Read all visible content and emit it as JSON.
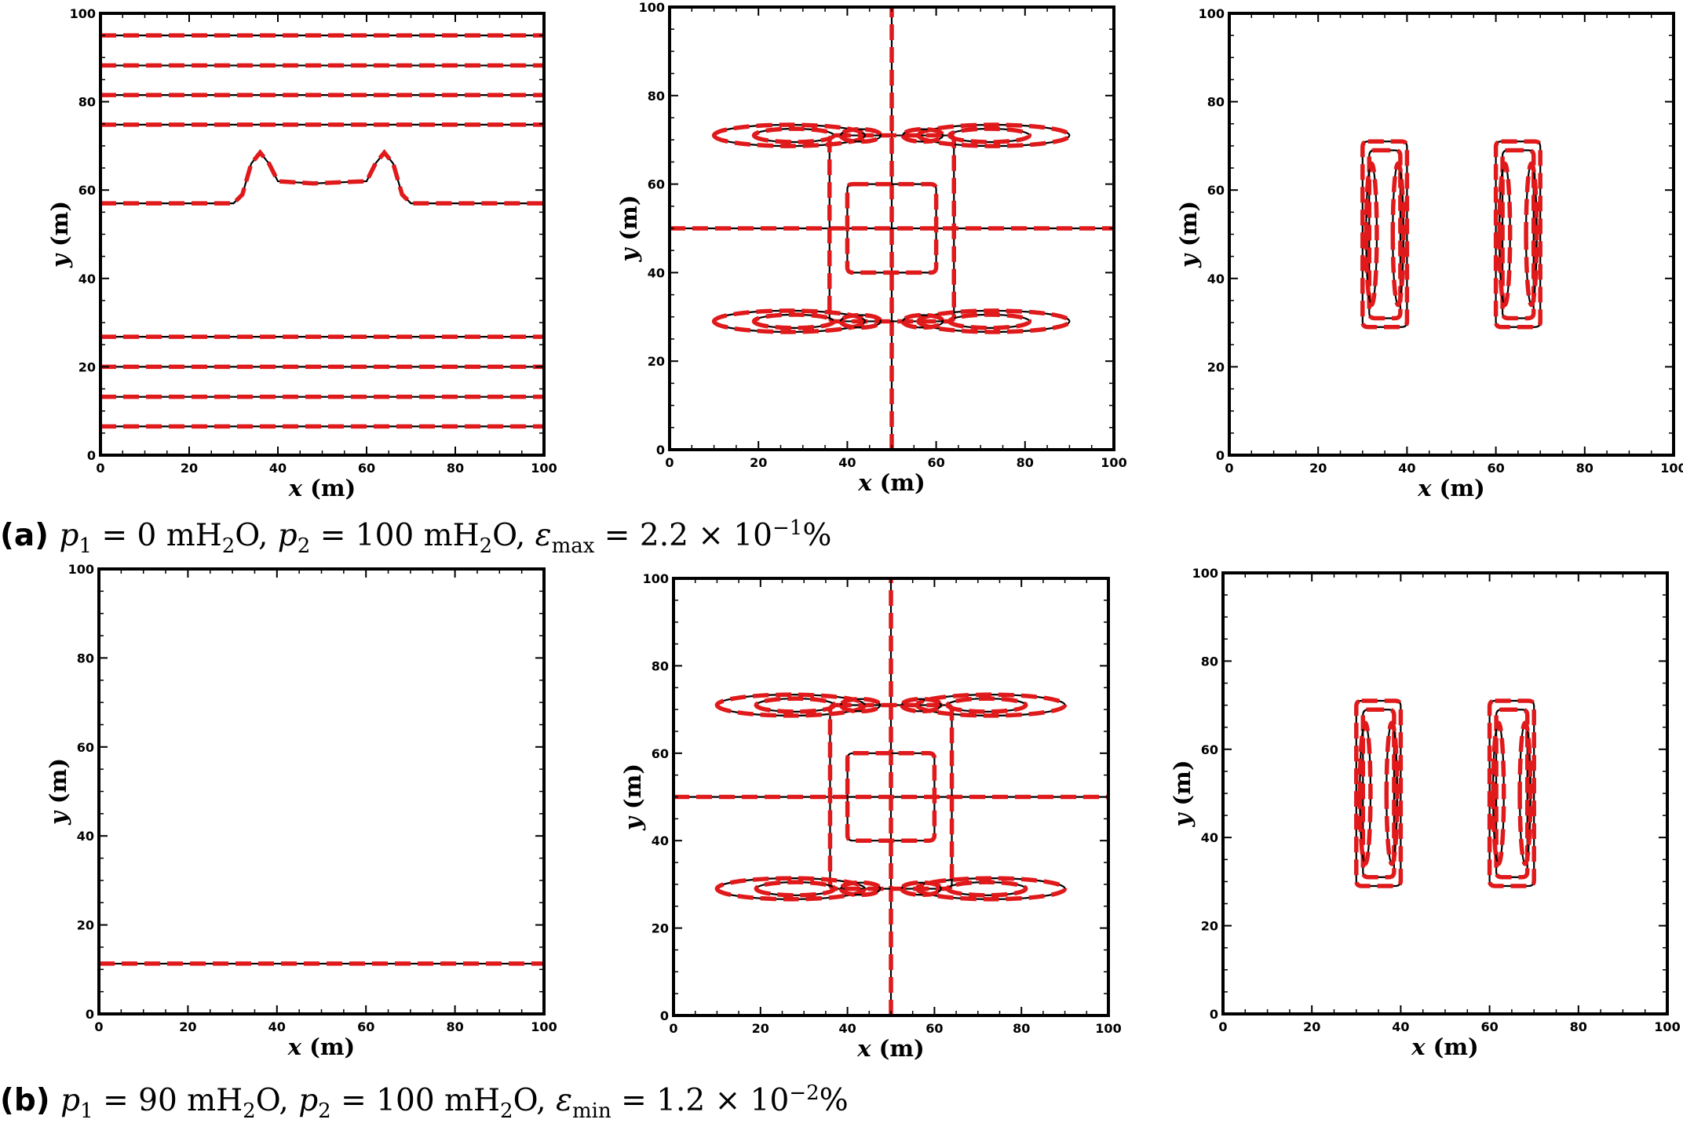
{
  "figure": {
    "caption_a": {
      "label": "(a)",
      "parts": [
        {
          "t": "p",
          "i": true
        },
        {
          "t": "1",
          "sub": true
        },
        {
          "t": " = 0 mH"
        },
        {
          "t": "2",
          "sub": true
        },
        {
          "t": "O, "
        },
        {
          "t": "p",
          "i": true
        },
        {
          "t": "2",
          "sub": true
        },
        {
          "t": " = 100 mH"
        },
        {
          "t": "2",
          "sub": true
        },
        {
          "t": "O, "
        },
        {
          "t": "ε",
          "i": true
        },
        {
          "t": "max",
          "sub": true
        },
        {
          "t": " = 2.2 × 10"
        },
        {
          "t": "−1",
          "sup": true
        },
        {
          "t": "%"
        }
      ]
    },
    "caption_b": {
      "label": "(b)",
      "parts": [
        {
          "t": "p",
          "i": true
        },
        {
          "t": "1",
          "sub": true
        },
        {
          "t": " = 90 mH"
        },
        {
          "t": "2",
          "sub": true
        },
        {
          "t": "O, "
        },
        {
          "t": "p",
          "i": true
        },
        {
          "t": "2",
          "sub": true
        },
        {
          "t": " = 100 mH"
        },
        {
          "t": "2",
          "sub": true
        },
        {
          "t": "O, "
        },
        {
          "t": "ε",
          "i": true
        },
        {
          "t": "min",
          "sub": true
        },
        {
          "t": " = 1.2 × 10"
        },
        {
          "t": "−2",
          "sup": true
        },
        {
          "t": "%"
        }
      ]
    },
    "colors": {
      "reference_line": "#000000",
      "comparison_line": "#e0191b"
    }
  },
  "chart_data": [
    {
      "panel": "a-1",
      "type": "line",
      "xlabel": "x (m)",
      "ylabel": "y (m)",
      "xlim": [
        0,
        100
      ],
      "ylim": [
        0,
        100
      ],
      "xticks": [
        0,
        20,
        40,
        60,
        80,
        100
      ],
      "yticks": [
        0,
        20,
        40,
        60,
        80,
        100
      ],
      "grid": false,
      "contours": [
        {
          "kind": "hline",
          "y": 6.5
        },
        {
          "kind": "hline",
          "y": 13.2
        },
        {
          "kind": "hline",
          "y": 20
        },
        {
          "kind": "hline",
          "y": 26.8
        },
        {
          "kind": "hline",
          "y": 74.8
        },
        {
          "kind": "hline",
          "y": 81.5
        },
        {
          "kind": "hline",
          "y": 88.2
        },
        {
          "kind": "hline",
          "y": 95
        },
        {
          "kind": "poly",
          "points": [
            [
              0,
              57
            ],
            [
              30,
              57
            ],
            [
              32,
              59
            ],
            [
              34,
              66
            ],
            [
              36,
              68.5
            ],
            [
              38,
              66
            ],
            [
              40,
              62
            ],
            [
              48,
              61.5
            ],
            [
              60,
              62
            ],
            [
              62,
              66
            ],
            [
              64,
              68.5
            ],
            [
              66,
              66
            ],
            [
              68,
              59
            ],
            [
              70,
              57
            ],
            [
              100,
              57
            ]
          ]
        }
      ]
    },
    {
      "panel": "a-2",
      "type": "line",
      "xlabel": "x (m)",
      "ylabel": "y (m)",
      "xlim": [
        0,
        100
      ],
      "ylim": [
        0,
        100
      ],
      "xticks": [
        0,
        20,
        40,
        60,
        80,
        100
      ],
      "yticks": [
        0,
        20,
        40,
        60,
        80,
        100
      ],
      "grid": false,
      "contours": [
        {
          "kind": "hline",
          "y": 50
        },
        {
          "kind": "vline",
          "x": 50
        },
        {
          "kind": "rect",
          "x0": 40,
          "x1": 60,
          "y0": 40,
          "y1": 60
        },
        {
          "kind": "rect",
          "x0": 36,
          "x1": 64,
          "y0": 29,
          "y1": 71
        },
        {
          "kind": "ellipse",
          "cx": 27,
          "cy": 71,
          "rx": 17,
          "ry": 2.4
        },
        {
          "kind": "ellipse",
          "cx": 28,
          "cy": 71,
          "rx": 9,
          "ry": 1.5
        },
        {
          "kind": "ellipse",
          "cx": 73,
          "cy": 71,
          "rx": 17,
          "ry": 2.4
        },
        {
          "kind": "ellipse",
          "cx": 72,
          "cy": 71,
          "rx": 9,
          "ry": 1.5
        },
        {
          "kind": "ellipse",
          "cx": 27,
          "cy": 29,
          "rx": 17,
          "ry": 2.4
        },
        {
          "kind": "ellipse",
          "cx": 28,
          "cy": 29,
          "rx": 9,
          "ry": 1.5
        },
        {
          "kind": "ellipse",
          "cx": 73,
          "cy": 29,
          "rx": 17,
          "ry": 2.4
        },
        {
          "kind": "ellipse",
          "cx": 72,
          "cy": 29,
          "rx": 9,
          "ry": 1.5
        },
        {
          "kind": "ellipse",
          "cx": 43,
          "cy": 71,
          "rx": 4.5,
          "ry": 1.4
        },
        {
          "kind": "ellipse",
          "cx": 57,
          "cy": 71,
          "rx": 4.5,
          "ry": 1.4
        },
        {
          "kind": "ellipse",
          "cx": 43,
          "cy": 29,
          "rx": 4.5,
          "ry": 1.4
        },
        {
          "kind": "ellipse",
          "cx": 57,
          "cy": 29,
          "rx": 4.5,
          "ry": 1.4
        }
      ]
    },
    {
      "panel": "a-3",
      "type": "line",
      "xlabel": "x (m)",
      "ylabel": "y (m)",
      "xlim": [
        0,
        100
      ],
      "ylim": [
        0,
        100
      ],
      "xticks": [
        0,
        20,
        40,
        60,
        80,
        100
      ],
      "yticks": [
        0,
        20,
        40,
        60,
        80,
        100
      ],
      "grid": false,
      "contours": [
        {
          "kind": "rect",
          "x0": 30,
          "x1": 40,
          "y0": 29,
          "y1": 71
        },
        {
          "kind": "rect",
          "x0": 31.5,
          "x1": 38.5,
          "y0": 31,
          "y1": 69
        },
        {
          "kind": "ellipse",
          "cx": 32,
          "cy": 50,
          "rx": 1.2,
          "ry": 16
        },
        {
          "kind": "ellipse",
          "cx": 38,
          "cy": 50,
          "rx": 1.2,
          "ry": 16
        },
        {
          "kind": "rect",
          "x0": 60,
          "x1": 70,
          "y0": 29,
          "y1": 71
        },
        {
          "kind": "rect",
          "x0": 61.5,
          "x1": 68.5,
          "y0": 31,
          "y1": 69
        },
        {
          "kind": "ellipse",
          "cx": 62,
          "cy": 50,
          "rx": 1.2,
          "ry": 16
        },
        {
          "kind": "ellipse",
          "cx": 68,
          "cy": 50,
          "rx": 1.2,
          "ry": 16
        }
      ]
    },
    {
      "panel": "b-1",
      "type": "line",
      "xlabel": "x (m)",
      "ylabel": "y (m)",
      "xlim": [
        0,
        100
      ],
      "ylim": [
        0,
        100
      ],
      "xticks": [
        0,
        20,
        40,
        60,
        80,
        100
      ],
      "yticks": [
        0,
        20,
        40,
        60,
        80,
        100
      ],
      "grid": false,
      "contours": [
        {
          "kind": "hline",
          "y": 11.3
        }
      ]
    },
    {
      "panel": "b-2",
      "type": "line",
      "xlabel": "x (m)",
      "ylabel": "y (m)",
      "xlim": [
        0,
        100
      ],
      "ylim": [
        0,
        100
      ],
      "xticks": [
        0,
        20,
        40,
        60,
        80,
        100
      ],
      "yticks": [
        0,
        20,
        40,
        60,
        80,
        100
      ],
      "grid": false,
      "contours": [
        {
          "kind": "hline",
          "y": 50
        },
        {
          "kind": "vline",
          "x": 50
        },
        {
          "kind": "rect",
          "x0": 40,
          "x1": 60,
          "y0": 40,
          "y1": 60
        },
        {
          "kind": "rect",
          "x0": 36,
          "x1": 64,
          "y0": 29,
          "y1": 71
        },
        {
          "kind": "ellipse",
          "cx": 27,
          "cy": 71,
          "rx": 17,
          "ry": 2.4
        },
        {
          "kind": "ellipse",
          "cx": 28,
          "cy": 71,
          "rx": 9,
          "ry": 1.5
        },
        {
          "kind": "ellipse",
          "cx": 73,
          "cy": 71,
          "rx": 17,
          "ry": 2.4
        },
        {
          "kind": "ellipse",
          "cx": 72,
          "cy": 71,
          "rx": 9,
          "ry": 1.5
        },
        {
          "kind": "ellipse",
          "cx": 27,
          "cy": 29,
          "rx": 17,
          "ry": 2.4
        },
        {
          "kind": "ellipse",
          "cx": 28,
          "cy": 29,
          "rx": 9,
          "ry": 1.5
        },
        {
          "kind": "ellipse",
          "cx": 73,
          "cy": 29,
          "rx": 17,
          "ry": 2.4
        },
        {
          "kind": "ellipse",
          "cx": 72,
          "cy": 29,
          "rx": 9,
          "ry": 1.5
        },
        {
          "kind": "ellipse",
          "cx": 43,
          "cy": 71,
          "rx": 4.5,
          "ry": 1.4
        },
        {
          "kind": "ellipse",
          "cx": 57,
          "cy": 71,
          "rx": 4.5,
          "ry": 1.4
        },
        {
          "kind": "ellipse",
          "cx": 43,
          "cy": 29,
          "rx": 4.5,
          "ry": 1.4
        },
        {
          "kind": "ellipse",
          "cx": 57,
          "cy": 29,
          "rx": 4.5,
          "ry": 1.4
        }
      ]
    },
    {
      "panel": "b-3",
      "type": "line",
      "xlabel": "x (m)",
      "ylabel": "y (m)",
      "xlim": [
        0,
        100
      ],
      "ylim": [
        0,
        100
      ],
      "xticks": [
        0,
        20,
        40,
        60,
        80,
        100
      ],
      "yticks": [
        0,
        20,
        40,
        60,
        80,
        100
      ],
      "grid": false,
      "contours": [
        {
          "kind": "rect",
          "x0": 30,
          "x1": 40,
          "y0": 29,
          "y1": 71
        },
        {
          "kind": "rect",
          "x0": 31.5,
          "x1": 38.5,
          "y0": 31,
          "y1": 69
        },
        {
          "kind": "ellipse",
          "cx": 32,
          "cy": 50,
          "rx": 1.2,
          "ry": 16
        },
        {
          "kind": "ellipse",
          "cx": 38,
          "cy": 50,
          "rx": 1.2,
          "ry": 16
        },
        {
          "kind": "rect",
          "x0": 60,
          "x1": 70,
          "y0": 29,
          "y1": 71
        },
        {
          "kind": "rect",
          "x0": 61.5,
          "x1": 68.5,
          "y0": 31,
          "y1": 69
        },
        {
          "kind": "ellipse",
          "cx": 62,
          "cy": 50,
          "rx": 1.2,
          "ry": 16
        },
        {
          "kind": "ellipse",
          "cx": 68,
          "cy": 50,
          "rx": 1.2,
          "ry": 16
        }
      ]
    }
  ]
}
